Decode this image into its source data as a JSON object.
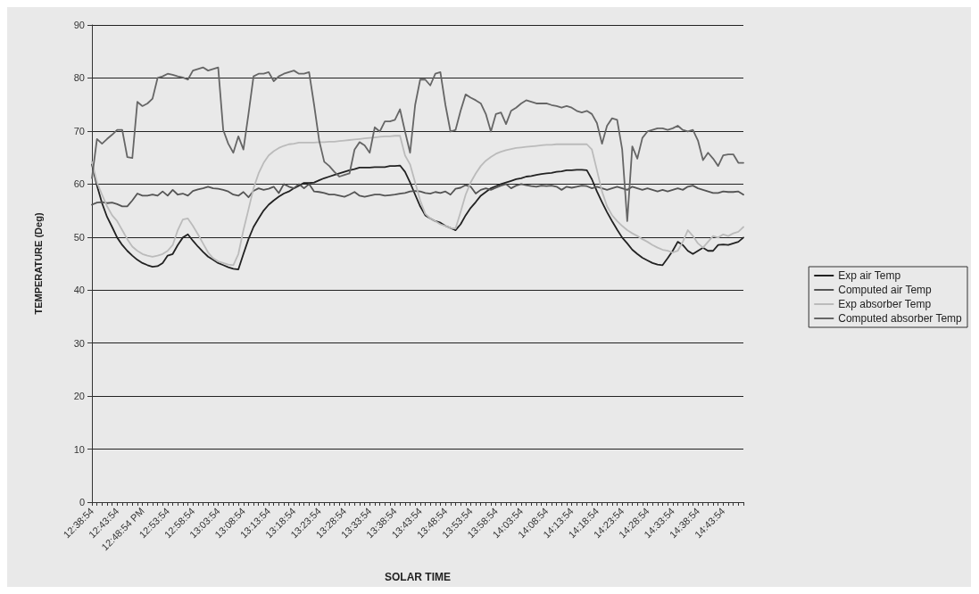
{
  "chart_data": {
    "type": "line",
    "xlabel": "SOLAR TIME",
    "ylabel": "TEMPERATURE (Deg)",
    "categories": [
      "12:38:54",
      null,
      null,
      null,
      null,
      "12:43:54",
      null,
      null,
      null,
      null,
      "12:48:54 PM",
      null,
      null,
      null,
      null,
      "12:53:54",
      null,
      null,
      null,
      null,
      "12:58:54",
      null,
      null,
      null,
      null,
      "13:03:54",
      null,
      null,
      null,
      null,
      "13:08:54",
      null,
      null,
      null,
      null,
      "13:13:54",
      null,
      null,
      null,
      null,
      "13:18:54",
      null,
      null,
      null,
      null,
      "13:23:54",
      null,
      null,
      null,
      null,
      "13:28:54",
      null,
      null,
      null,
      null,
      "13:33:54",
      null,
      null,
      null,
      null,
      "13:38:54",
      null,
      null,
      null,
      null,
      "13:43:54",
      null,
      null,
      null,
      null,
      "13:48:54",
      null,
      null,
      null,
      null,
      "13:53:54",
      null,
      null,
      null,
      null,
      "13:58:54",
      null,
      null,
      null,
      null,
      "14:03:54",
      null,
      null,
      null,
      null,
      "14:08:54",
      null,
      null,
      null,
      null,
      "14:13:54",
      null,
      null,
      null,
      null,
      "14:18:54",
      null,
      null,
      null,
      null,
      "14:23:54",
      null,
      null,
      null,
      null,
      "14:28:54",
      null,
      null,
      null,
      null,
      "14:33:54",
      null,
      null,
      null,
      null,
      "14:38:54",
      null,
      null,
      null,
      null,
      "14:43:54",
      null,
      null,
      null,
      null
    ],
    "series": [
      {
        "name": "Exp air Temp",
        "color": "#222222",
        "values": [
          63.7,
          59.7,
          56.4,
          53.8,
          51.9,
          49.9,
          48.5,
          47.4,
          46.5,
          45.7,
          45.1,
          44.7,
          44.4,
          44.5,
          45.1,
          46.5,
          46.8,
          48.5,
          49.9,
          50.5,
          49.3,
          48.2,
          47.2,
          46.3,
          45.7,
          45.1,
          44.7,
          44.3,
          44,
          43.9,
          46.8,
          49.6,
          51.9,
          53.5,
          55,
          56.1,
          56.9,
          57.6,
          58.2,
          58.6,
          59.2,
          59.7,
          60.2,
          60.2,
          60.3,
          60.7,
          61.1,
          61.4,
          61.7,
          62,
          62.3,
          62.6,
          62.8,
          63.1,
          63.1,
          63.1,
          63.2,
          63.2,
          63.2,
          63.4,
          63.4,
          63.5,
          62.3,
          60.3,
          58,
          55.8,
          54.1,
          53.5,
          53,
          52.7,
          52.1,
          51.7,
          51.3,
          52.4,
          54.1,
          55.5,
          56.6,
          57.8,
          58.5,
          59.2,
          59.6,
          60,
          60.3,
          60.6,
          60.9,
          61.1,
          61.4,
          61.5,
          61.7,
          61.9,
          62,
          62.1,
          62.3,
          62.4,
          62.6,
          62.6,
          62.7,
          62.7,
          62.6,
          60.9,
          58.6,
          56.6,
          54.7,
          53,
          51.4,
          49.9,
          48.8,
          47.6,
          46.8,
          46.1,
          45.6,
          45.1,
          44.8,
          44.7,
          46,
          47.4,
          49.1,
          48.5,
          47.4,
          46.8,
          47.4,
          48,
          47.4,
          47.4,
          48.5,
          48.6,
          48.5,
          48.8,
          49.1,
          49.9
        ]
      },
      {
        "name": "Computed air Temp",
        "color": "#555555",
        "values": [
          56.1,
          56.5,
          56.6,
          56.4,
          56.5,
          56.2,
          55.8,
          55.8,
          56.9,
          58.2,
          57.8,
          57.8,
          58,
          57.8,
          58.6,
          57.8,
          58.9,
          58,
          58.2,
          57.8,
          58.7,
          59,
          59.2,
          59.5,
          59.2,
          59.1,
          58.9,
          58.6,
          58,
          57.8,
          58.5,
          57.5,
          58.7,
          59.2,
          58.9,
          59.1,
          59.5,
          58.3,
          60,
          59.5,
          59.2,
          60,
          59.2,
          60,
          58.6,
          58.5,
          58.3,
          58,
          58,
          57.8,
          57.6,
          58,
          58.5,
          57.8,
          57.6,
          57.8,
          58,
          58,
          57.8,
          57.9,
          58,
          58.2,
          58.3,
          58.6,
          58.7,
          58.6,
          58.3,
          58.2,
          58.5,
          58.3,
          58.6,
          58,
          59.1,
          59.3,
          59.8,
          59.5,
          58.2,
          58.9,
          59.2,
          58.9,
          59.3,
          59.7,
          60,
          59.2,
          59.7,
          60,
          59.8,
          59.6,
          59.5,
          59.7,
          59.6,
          59.7,
          59.5,
          58.9,
          59.5,
          59.3,
          59.5,
          59.7,
          59.6,
          59.2,
          59.5,
          59.2,
          58.9,
          59.2,
          59.5,
          59.2,
          58.9,
          59.5,
          59.2,
          58.9,
          59.2,
          58.9,
          58.6,
          58.9,
          58.6,
          58.9,
          59.2,
          58.9,
          59.5,
          59.7,
          59.2,
          58.9,
          58.6,
          58.3,
          58.3,
          58.6,
          58.5,
          58.5,
          58.6,
          58
        ]
      },
      {
        "name": "Exp absorber Temp",
        "color": "#bbbbbb",
        "values": [
          64.2,
          60.3,
          58,
          55.8,
          54.1,
          53,
          51.3,
          49.6,
          48.2,
          47.4,
          46.8,
          46.5,
          46.3,
          46.5,
          46.8,
          47.4,
          48.5,
          51.3,
          53.3,
          53.5,
          52.1,
          50.5,
          48.8,
          47.1,
          46,
          45.4,
          45.1,
          44.8,
          44.7,
          46.8,
          51.3,
          55.2,
          59.2,
          62,
          64,
          65.4,
          66.2,
          66.8,
          67.2,
          67.5,
          67.6,
          67.8,
          67.8,
          67.8,
          67.8,
          67.9,
          67.9,
          68,
          68,
          68.1,
          68.2,
          68.3,
          68.4,
          68.5,
          68.6,
          68.7,
          68.8,
          68.9,
          69,
          69,
          69.1,
          69.1,
          65.4,
          63.7,
          60.3,
          56.9,
          54.4,
          53.5,
          53,
          52.4,
          52.1,
          51.7,
          51.6,
          54.7,
          58,
          60.3,
          62,
          63.4,
          64.4,
          65.1,
          65.7,
          66.1,
          66.4,
          66.6,
          66.8,
          66.9,
          67,
          67.1,
          67.2,
          67.3,
          67.4,
          67.4,
          67.5,
          67.5,
          67.5,
          67.5,
          67.5,
          67.5,
          67.5,
          66.5,
          62.6,
          58.6,
          55.8,
          54.1,
          53,
          52.1,
          51.3,
          50.7,
          50.2,
          49.6,
          49.1,
          48.5,
          48,
          47.6,
          47.4,
          47.1,
          47.4,
          49.1,
          51.3,
          50.2,
          48.8,
          48,
          49.1,
          50.2,
          49.9,
          50.5,
          50.2,
          50.7,
          51,
          51.9
        ]
      },
      {
        "name": "Computed absorber Temp",
        "color": "#666666",
        "values": [
          61.1,
          68.5,
          67.6,
          68.5,
          69.3,
          70.2,
          70.2,
          65.1,
          64.9,
          75.5,
          74.7,
          75.2,
          76.1,
          80,
          80.3,
          80.8,
          80.6,
          80.3,
          80.1,
          79.7,
          81.4,
          81.7,
          82,
          81.4,
          81.7,
          82,
          70.2,
          67.6,
          65.9,
          69,
          66.5,
          73.2,
          80.3,
          80.8,
          80.8,
          81.1,
          79.4,
          80.3,
          80.8,
          81.1,
          81.4,
          80.8,
          80.8,
          81.1,
          74.9,
          68.2,
          64.2,
          63.4,
          62.3,
          61.4,
          61.7,
          62,
          66.5,
          67.9,
          67.3,
          65.9,
          70.7,
          69.9,
          71.8,
          71.8,
          72.1,
          74.1,
          69.9,
          65.9,
          74.9,
          79.7,
          79.7,
          78.6,
          80.8,
          81.1,
          74.9,
          69.9,
          70.2,
          73.8,
          76.9,
          76.3,
          75.8,
          75.2,
          73.2,
          69.9,
          73.2,
          73.5,
          71.3,
          73.8,
          74.4,
          75.2,
          75.8,
          75.5,
          75.2,
          75.2,
          75.2,
          74.9,
          74.7,
          74.4,
          74.7,
          74.4,
          73.8,
          73.5,
          73.8,
          73.2,
          71.5,
          67.6,
          71,
          72.4,
          72.1,
          66.5,
          53,
          67.1,
          64.8,
          68.7,
          69.9,
          70.2,
          70.5,
          70.5,
          70.2,
          70.5,
          71,
          70.2,
          69.9,
          70.2,
          68.2,
          64.5,
          65.9,
          64.8,
          63.4,
          65.4,
          65.6,
          65.6,
          64,
          64
        ]
      }
    ],
    "ylim": [
      0,
      90
    ],
    "yticks": [
      0,
      10,
      20,
      30,
      40,
      50,
      60,
      70,
      80,
      90
    ],
    "grid": "y",
    "legend": "right",
    "marker": "none",
    "line_style": "solid"
  }
}
